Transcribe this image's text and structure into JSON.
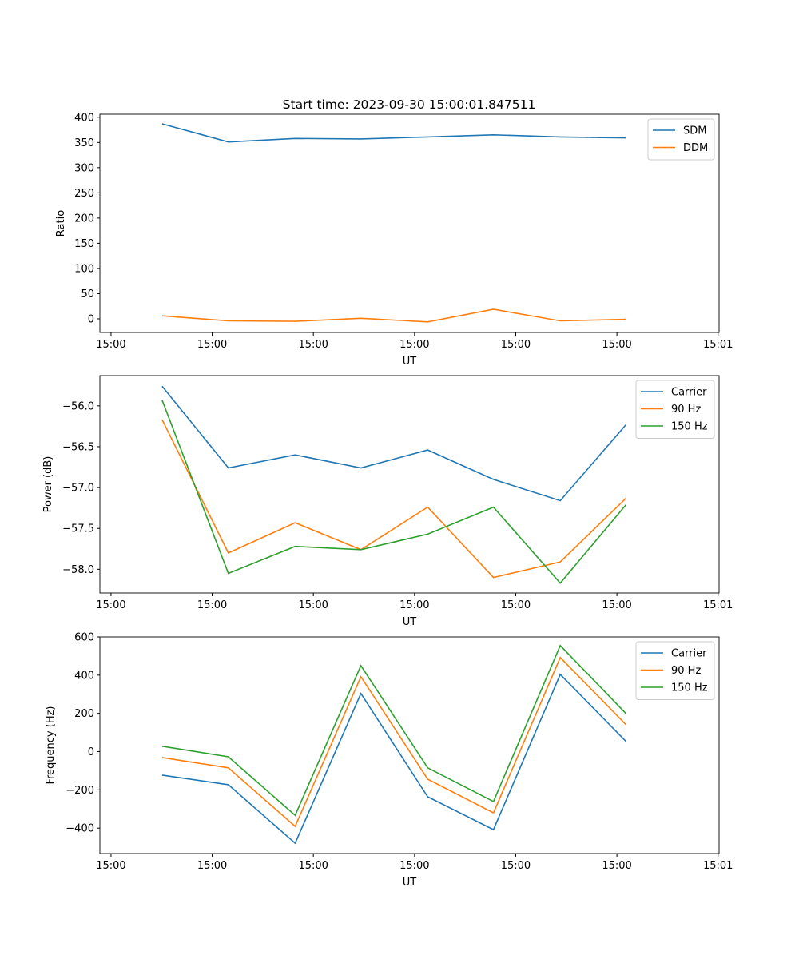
{
  "figure_title": "Start time: 2023-09-30 15:00:01.847511",
  "chart_data": [
    {
      "type": "line",
      "title": "Start time: 2023-09-30 15:00:01.847511",
      "xlabel": "UT",
      "ylabel": "Ratio",
      "x_seconds": [
        5.05,
        11.6,
        18.2,
        24.7,
        31.3,
        37.8,
        44.4,
        50.9
      ],
      "xlim": [
        -1.1,
        60.1
      ],
      "xticks": [
        0,
        10,
        20,
        30,
        40,
        50,
        60
      ],
      "xtick_labels": [
        "15:00",
        "15:00",
        "15:00",
        "15:00",
        "15:00",
        "15:00",
        "15:01"
      ],
      "ylim": [
        -27,
        406
      ],
      "yticks": [
        0,
        50,
        100,
        150,
        200,
        250,
        300,
        350,
        400
      ],
      "ytick_labels": [
        "0",
        "50",
        "100",
        "150",
        "200",
        "250",
        "300",
        "350",
        "400"
      ],
      "legend": "top-right",
      "series": [
        {
          "name": "SDM",
          "color": "#1f77b4",
          "values": [
            387,
            351,
            358,
            357,
            361,
            365,
            361,
            359
          ]
        },
        {
          "name": "DDM",
          "color": "#ff7f0e",
          "values": [
            6,
            -4,
            -5,
            1,
            -6,
            19,
            -4,
            -1
          ]
        }
      ]
    },
    {
      "type": "line",
      "xlabel": "UT",
      "ylabel": "Power (dB)",
      "x_seconds": [
        5.05,
        11.6,
        18.2,
        24.7,
        31.3,
        37.8,
        44.4,
        50.9
      ],
      "xlim": [
        -1.1,
        60.1
      ],
      "xticks": [
        0,
        10,
        20,
        30,
        40,
        50,
        60
      ],
      "xtick_labels": [
        "15:00",
        "15:00",
        "15:00",
        "15:00",
        "15:00",
        "15:00",
        "15:01"
      ],
      "ylim": [
        -58.29,
        -55.63
      ],
      "yticks": [
        -56.0,
        -56.5,
        -57.0,
        -57.5,
        -58.0
      ],
      "ytick_labels": [
        "−56.0",
        "−56.5",
        "−57.0",
        "−57.5",
        "−58.0"
      ],
      "legend": "top-right",
      "series": [
        {
          "name": "Carrier",
          "color": "#1f77b4",
          "values": [
            -55.76,
            -56.76,
            -56.6,
            -56.76,
            -56.54,
            -56.9,
            -57.16,
            -56.23
          ]
        },
        {
          "name": "90 Hz",
          "color": "#ff7f0e",
          "values": [
            -56.17,
            -57.8,
            -57.43,
            -57.76,
            -57.24,
            -58.1,
            -57.91,
            -57.13
          ]
        },
        {
          "name": "150 Hz",
          "color": "#2ca02c",
          "values": [
            -55.93,
            -58.05,
            -57.72,
            -57.76,
            -57.57,
            -57.24,
            -58.17,
            -57.21
          ]
        }
      ]
    },
    {
      "type": "line",
      "xlabel": "UT",
      "ylabel": "Frequency (Hz)",
      "x_seconds": [
        5.05,
        11.6,
        18.2,
        24.7,
        31.3,
        37.8,
        44.4,
        50.9
      ],
      "xlim": [
        -1.1,
        60.1
      ],
      "xticks": [
        0,
        10,
        20,
        30,
        40,
        50,
        60
      ],
      "xtick_labels": [
        "15:00",
        "15:00",
        "15:00",
        "15:00",
        "15:00",
        "15:00",
        "15:01"
      ],
      "ylim": [
        -533,
        600
      ],
      "yticks": [
        600,
        400,
        200,
        0,
        -200,
        -400
      ],
      "ytick_labels": [
        "600",
        "400",
        "200",
        "0",
        "−200",
        "−400"
      ],
      "legend": "top-right",
      "series": [
        {
          "name": "Carrier",
          "color": "#1f77b4",
          "values": [
            -123,
            -173,
            -479,
            304,
            -236,
            -408,
            404,
            53
          ]
        },
        {
          "name": "90 Hz",
          "color": "#ff7f0e",
          "values": [
            -31,
            -85,
            -391,
            392,
            -144,
            -320,
            492,
            141
          ]
        },
        {
          "name": "150 Hz",
          "color": "#2ca02c",
          "values": [
            28,
            -27,
            -333,
            450,
            -85,
            -261,
            555,
            199
          ]
        }
      ]
    }
  ]
}
